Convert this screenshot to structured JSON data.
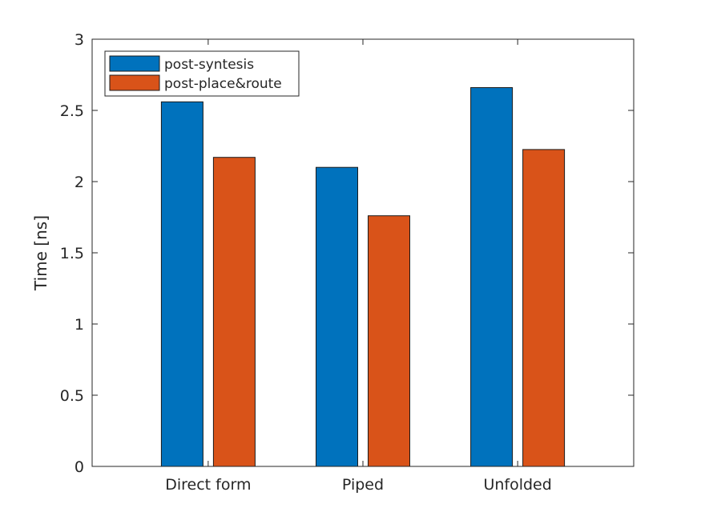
{
  "chart_data": {
    "type": "bar",
    "title": "",
    "xlabel": "",
    "ylabel": "Time [ns]",
    "categories": [
      "Direct form",
      "Piped",
      "Unfolded"
    ],
    "series": [
      {
        "name": "post-syntesis",
        "color": "#0072bd",
        "values": [
          2.56,
          2.1,
          2.66
        ]
      },
      {
        "name": "post-place&route",
        "color": "#d95319",
        "values": [
          2.17,
          1.76,
          2.225
        ]
      }
    ],
    "ylim": [
      0,
      3
    ],
    "yticks": [
      0,
      0.5,
      1,
      1.5,
      2,
      2.5,
      3
    ],
    "ytick_labels": [
      "0",
      "0.5",
      "1",
      "1.5",
      "2",
      "2.5",
      "3"
    ],
    "grid": false,
    "legend_position": "top-left"
  }
}
